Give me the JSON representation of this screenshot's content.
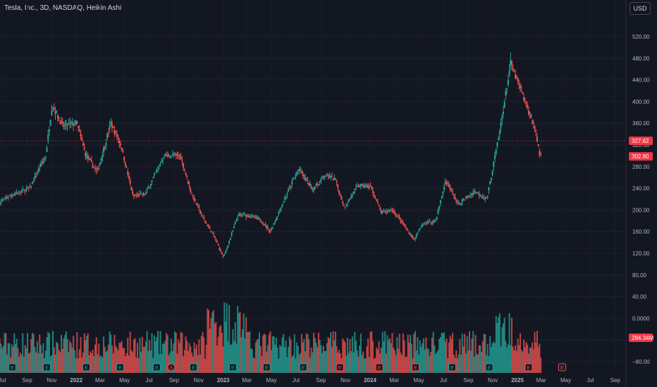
{
  "header": {
    "title": "Tesla, Inc., 3D, NASDAQ, Heikin Ashi",
    "currency": "USD"
  },
  "colors": {
    "background": "#131722",
    "up": "#26a69a",
    "down": "#ef5350",
    "last_price_tag": "#f23645"
  },
  "chart_data": {
    "type": "candlestick",
    "title": "Tesla, Inc., 3D, NASDAQ, Heikin Ashi",
    "price_axis": {
      "ticks": [
        "520.00",
        "480.00",
        "440.00",
        "400.00",
        "360.00",
        "320.00",
        "280.00",
        "240.00",
        "200.00",
        "160.00",
        "120.00",
        "80.00",
        "40.00",
        "0.0000",
        "−40.00",
        "−80.00"
      ],
      "ylim": [
        -80,
        540
      ]
    },
    "time_axis": {
      "ticks": [
        "Jul",
        "Sep",
        "Nov",
        "2022",
        "Mar",
        "May",
        "Jul",
        "Sep",
        "Nov",
        "2023",
        "Mar",
        "May",
        "Jul",
        "Sep",
        "Nov",
        "2024",
        "Mar",
        "May",
        "Jul",
        "Sep",
        "Nov",
        "2025",
        "Mar",
        "May",
        "Jul",
        "Sep"
      ]
    },
    "price_anchors": [
      {
        "date": "2021-06-25",
        "price": 212
      },
      {
        "date": "2021-07-20",
        "price": 226
      },
      {
        "date": "2021-09-10",
        "price": 240
      },
      {
        "date": "2021-10-20",
        "price": 300
      },
      {
        "date": "2021-11-05",
        "price": 395
      },
      {
        "date": "2021-12-01",
        "price": 355
      },
      {
        "date": "2022-01-05",
        "price": 360
      },
      {
        "date": "2022-01-28",
        "price": 300
      },
      {
        "date": "2022-02-25",
        "price": 270
      },
      {
        "date": "2022-03-31",
        "price": 360
      },
      {
        "date": "2022-04-25",
        "price": 320
      },
      {
        "date": "2022-05-25",
        "price": 225
      },
      {
        "date": "2022-06-25",
        "price": 230
      },
      {
        "date": "2022-08-10",
        "price": 300
      },
      {
        "date": "2022-09-20",
        "price": 300
      },
      {
        "date": "2022-10-15",
        "price": 235
      },
      {
        "date": "2022-11-15",
        "price": 185
      },
      {
        "date": "2022-12-10",
        "price": 155
      },
      {
        "date": "2023-01-05",
        "price": 112
      },
      {
        "date": "2023-02-10",
        "price": 190
      },
      {
        "date": "2023-03-10",
        "price": 190
      },
      {
        "date": "2023-04-10",
        "price": 180
      },
      {
        "date": "2023-05-01",
        "price": 160
      },
      {
        "date": "2023-06-05",
        "price": 220
      },
      {
        "date": "2023-07-10",
        "price": 275
      },
      {
        "date": "2023-08-15",
        "price": 238
      },
      {
        "date": "2023-09-15",
        "price": 265
      },
      {
        "date": "2023-10-10",
        "price": 255
      },
      {
        "date": "2023-11-01",
        "price": 205
      },
      {
        "date": "2023-12-05",
        "price": 245
      },
      {
        "date": "2024-01-05",
        "price": 243
      },
      {
        "date": "2024-02-01",
        "price": 195
      },
      {
        "date": "2024-03-01",
        "price": 200
      },
      {
        "date": "2024-04-22",
        "price": 145
      },
      {
        "date": "2024-05-15",
        "price": 175
      },
      {
        "date": "2024-06-15",
        "price": 180
      },
      {
        "date": "2024-07-10",
        "price": 255
      },
      {
        "date": "2024-08-10",
        "price": 210
      },
      {
        "date": "2024-09-20",
        "price": 235
      },
      {
        "date": "2024-10-20",
        "price": 220
      },
      {
        "date": "2024-11-20",
        "price": 340
      },
      {
        "date": "2024-12-18",
        "price": 470
      },
      {
        "date": "2025-01-15",
        "price": 415
      },
      {
        "date": "2025-02-15",
        "price": 355
      },
      {
        "date": "2025-03-01",
        "price": 300
      }
    ],
    "last_price": "327.62",
    "second_price": "302.80",
    "volume_tag": "284.34M",
    "events": [
      {
        "date": "2021-07-26",
        "label": "E",
        "type": "earnings",
        "past": true
      },
      {
        "date": "2021-10-20",
        "label": "E",
        "type": "earnings",
        "past": true
      },
      {
        "date": "2022-01-26",
        "label": "E",
        "type": "earnings",
        "past": true
      },
      {
        "date": "2022-04-20",
        "label": "E",
        "type": "earnings",
        "past": true
      },
      {
        "date": "2022-07-20",
        "label": "E",
        "type": "earnings",
        "past": true
      },
      {
        "date": "2022-08-25",
        "label": "S",
        "type": "split",
        "past": true
      },
      {
        "date": "2022-10-19",
        "label": "E",
        "type": "earnings",
        "past": true
      },
      {
        "date": "2023-01-25",
        "label": "E",
        "type": "earnings",
        "past": true
      },
      {
        "date": "2023-04-19",
        "label": "E",
        "type": "earnings",
        "past": true
      },
      {
        "date": "2023-07-19",
        "label": "E",
        "type": "earnings",
        "past": true
      },
      {
        "date": "2023-10-18",
        "label": "E",
        "type": "earnings",
        "past": false
      },
      {
        "date": "2024-01-24",
        "label": "E",
        "type": "earnings",
        "past": false
      },
      {
        "date": "2024-04-23",
        "label": "E",
        "type": "earnings",
        "past": false
      },
      {
        "date": "2024-07-23",
        "label": "E",
        "type": "earnings",
        "past": true
      },
      {
        "date": "2024-10-23",
        "label": "E",
        "type": "earnings",
        "past": true
      },
      {
        "date": "2025-01-29",
        "label": "E",
        "type": "earnings",
        "past": false
      },
      {
        "date": "2025-04-22",
        "label": "E",
        "type": "earnings",
        "upcoming": true
      }
    ]
  }
}
